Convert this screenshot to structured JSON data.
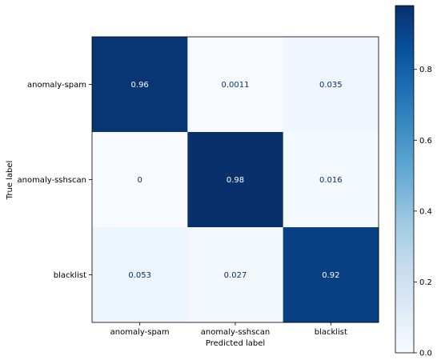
{
  "chart_data": {
    "type": "heatmap",
    "title": "",
    "xlabel": "Predicted label",
    "ylabel": "True label",
    "x_categories": [
      "anomaly-spam",
      "anomaly-sshscan",
      "blacklist"
    ],
    "y_categories": [
      "anomaly-spam",
      "anomaly-sshscan",
      "blacklist"
    ],
    "values": [
      [
        0.96,
        0.0011,
        0.035
      ],
      [
        0,
        0.98,
        0.016
      ],
      [
        0.053,
        0.027,
        0.92
      ]
    ],
    "value_labels": [
      [
        "0.96",
        "0.0011",
        "0.035"
      ],
      [
        "0",
        "0.98",
        "0.016"
      ],
      [
        "0.053",
        "0.027",
        "0.92"
      ]
    ],
    "colormap": "Blues",
    "colorbar": {
      "range": [
        0,
        0.98
      ],
      "ticks": [
        0.0,
        0.2,
        0.4,
        0.6,
        0.8
      ],
      "tick_labels": [
        "0.0",
        "0.2",
        "0.4",
        "0.6",
        "0.8"
      ]
    },
    "grid": false
  }
}
